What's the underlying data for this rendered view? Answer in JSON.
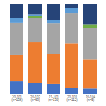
{
  "chart_data": {
    "type": "bar",
    "stacked": true,
    "tick_labels": "x",
    "categories": [
      "20-101\n(n=138)",
      "20-102\n(n=69)",
      "21-101\n(n=139)",
      "20-103\n(n=112)",
      "20-104\n(n=5)"
    ],
    "ylim": [
      0,
      100
    ],
    "series": [
      {
        "color": "#4472c4",
        "values": [
          14,
          12,
          11,
          7,
          6
        ]
      },
      {
        "color": "#ed7d31",
        "values": [
          29,
          45,
          33,
          49,
          32
        ]
      },
      {
        "color": "#a5a5a5",
        "values": [
          36,
          27,
          34,
          33,
          35
        ]
      },
      {
        "color": "#70ad47",
        "values": [
          0,
          2,
          0,
          0,
          4
        ]
      },
      {
        "color": "#5b9bd5",
        "values": [
          5,
          2,
          4,
          6,
          0
        ]
      },
      {
        "color": "#264478",
        "values": [
          16,
          12,
          18,
          5,
          23
        ]
      }
    ]
  }
}
